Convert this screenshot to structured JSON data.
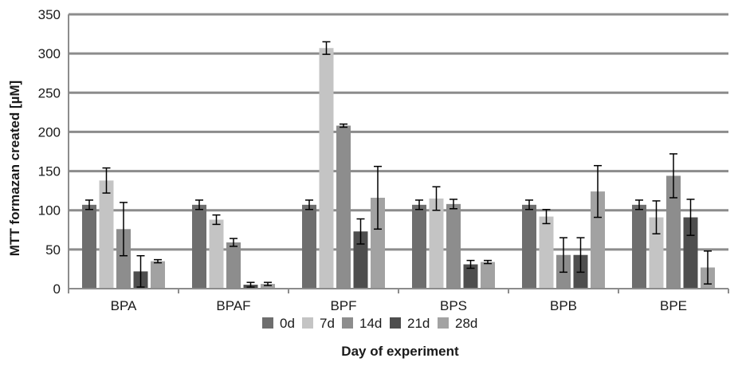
{
  "chart_data": {
    "type": "bar",
    "title": "",
    "xlabel": "Day of experiment",
    "ylabel": "MTT formazan created [µM]",
    "ylim": [
      0,
      350
    ],
    "yticks": [
      0,
      50,
      100,
      150,
      200,
      250,
      300,
      350
    ],
    "grid": "horizontal",
    "legend_position": "bottom",
    "categories": [
      "BPA",
      "BPAF",
      "BPF",
      "BPS",
      "BPB",
      "BPE"
    ],
    "series": [
      {
        "name": "0d",
        "color": "#6e6e6e",
        "values": [
          107,
          107,
          107,
          107,
          107,
          107
        ],
        "errors": [
          6,
          6,
          6,
          6,
          6,
          6
        ]
      },
      {
        "name": "7d",
        "color": "#c4c4c4",
        "values": [
          138,
          88,
          307,
          115,
          92,
          91
        ],
        "errors": [
          16,
          6,
          8,
          15,
          9,
          21
        ]
      },
      {
        "name": "14d",
        "color": "#8d8d8d",
        "values": [
          76,
          59,
          208,
          108,
          43,
          144
        ],
        "errors": [
          34,
          5,
          2,
          6,
          22,
          28
        ]
      },
      {
        "name": "21d",
        "color": "#4e4e4e",
        "values": [
          22,
          5,
          73,
          31,
          43,
          91
        ],
        "errors": [
          20,
          3,
          16,
          5,
          22,
          23
        ]
      },
      {
        "name": "28d",
        "color": "#a2a2a2",
        "values": [
          35,
          6,
          116,
          34,
          124,
          27
        ],
        "errors": [
          2,
          2,
          40,
          2,
          33,
          21
        ]
      }
    ]
  }
}
